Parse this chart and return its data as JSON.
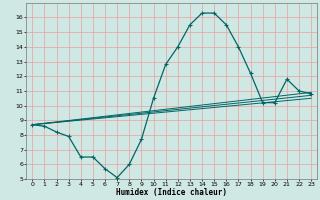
{
  "xlabel": "Humidex (Indice chaleur)",
  "bg_color": "#cfe8e4",
  "grid_color": "#e8a0a0",
  "line_color": "#006666",
  "xlim": [
    -0.5,
    23.5
  ],
  "ylim": [
    5,
    17
  ],
  "yticks": [
    5,
    6,
    7,
    8,
    9,
    10,
    11,
    12,
    13,
    14,
    15,
    16
  ],
  "xticks": [
    0,
    1,
    2,
    3,
    4,
    5,
    6,
    7,
    8,
    9,
    10,
    11,
    12,
    13,
    14,
    15,
    16,
    17,
    18,
    19,
    20,
    21,
    22,
    23
  ],
  "main_x": [
    0,
    1,
    2,
    3,
    4,
    5,
    6,
    7,
    8,
    9,
    10,
    11,
    12,
    13,
    14,
    15,
    16,
    17,
    18,
    19,
    20,
    21,
    22,
    23
  ],
  "main_y": [
    8.7,
    8.6,
    8.2,
    7.9,
    6.5,
    6.5,
    5.7,
    5.1,
    6.0,
    7.7,
    10.5,
    12.8,
    14.0,
    15.5,
    16.3,
    16.3,
    15.5,
    14.0,
    12.2,
    10.2,
    10.2,
    11.8,
    11.0,
    10.8
  ],
  "trend_lines": [
    {
      "start": 8.7,
      "end": 10.5
    },
    {
      "start": 8.7,
      "end": 10.7
    },
    {
      "start": 8.7,
      "end": 10.9
    }
  ],
  "xlabel_fontsize": 5.5,
  "tick_fontsize": 4.5
}
